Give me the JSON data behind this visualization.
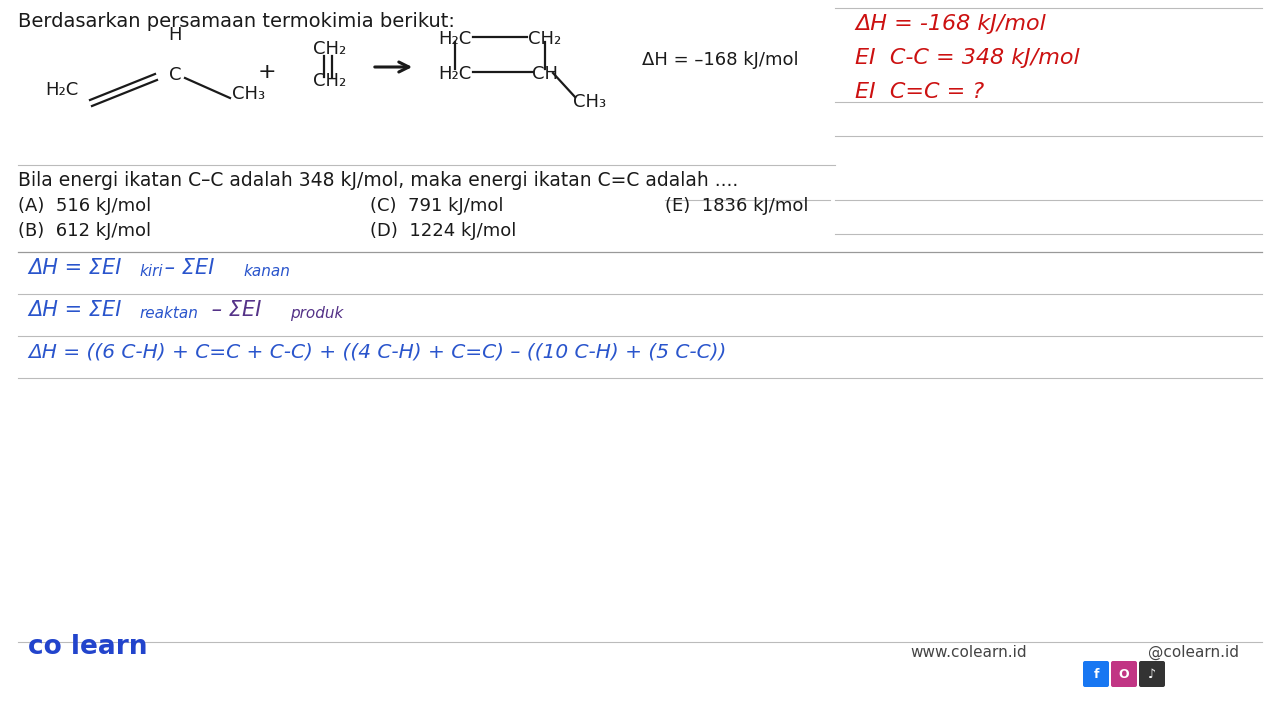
{
  "bg": "#ffffff",
  "black": "#1a1a1a",
  "red": "#cc1111",
  "blue": "#2244cc",
  "gray_line": "#bbbbbb",
  "title": "Berdasarkan persamaan termokimia berikut:",
  "question": "Bila energi ikatan C–C adalah 348 kJ/mol, maka energi ikatan C=C adalah ....",
  "choiceA": "(A)  516 kJ/mol",
  "choiceB": "(B)  612 kJ/mol",
  "choiceC": "(C)  791 kJ/mol",
  "choiceD": "(D)  1224 kJ/mol",
  "choiceE": "(E)  1836 kJ/mol",
  "red1": "ΔH = -168 kJ/mol",
  "red2": "EI  C-C = 348 kJ/mol",
  "red3": "EI  C=C = ?",
  "dh_rxn": "ΔH = –168 kJ/mol",
  "footer_brand": "co learn",
  "footer_web": "www.colearn.id",
  "footer_social": "@colearn.id",
  "f1_main": "ΔH = ΣEI",
  "f1_sub1": "kiri",
  "f1_mid": " – ΣEI",
  "f1_sub2": "kanan",
  "f2_main": "ΔH = ΣEI",
  "f2_sub1": "reaktan",
  "f2_mid": " – ΣEI",
  "f2_sub2": "produk",
  "f3": "ΔH = ((6 C-H) + C=C + C-C) + ((4 C-H) + C=C) – ((10 C-H) + (5 C-C))"
}
